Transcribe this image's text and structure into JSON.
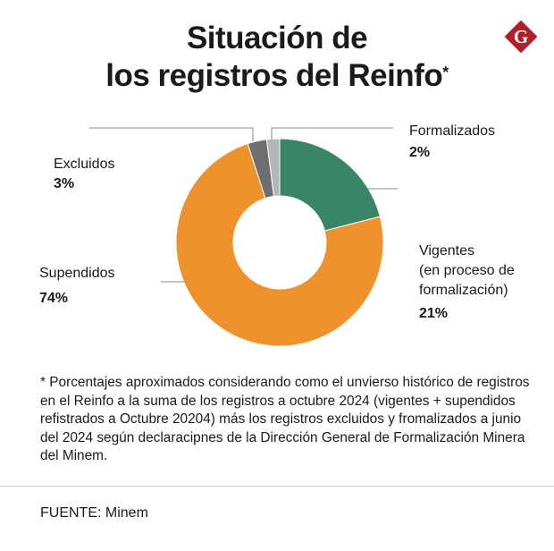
{
  "title_line1": "Situación de",
  "title_line2": "los registros del Reinfo",
  "title_mark": "*",
  "logo": {
    "letter": "G",
    "color": "#b01e2a"
  },
  "chart_data": {
    "type": "pie",
    "donut": true,
    "title": "Situación de los registros del Reinfo*",
    "slices": [
      {
        "name": "Vigentes (en proceso de formalización)",
        "label_lines": [
          "Vigentes",
          "(en proceso de",
          "formalización)"
        ],
        "value": 21,
        "display": "21%",
        "color": "#3a8565"
      },
      {
        "name": "Supendidos",
        "label_lines": [
          "Supendidos"
        ],
        "value": 74,
        "display": "74%",
        "color": "#f0922b"
      },
      {
        "name": "Excluidos",
        "label_lines": [
          "Excluidos"
        ],
        "value": 3,
        "display": "3%",
        "color": "#6d6e70"
      },
      {
        "name": "Formalizados",
        "label_lines": [
          "Formalizados"
        ],
        "value": 2,
        "display": "2%",
        "color": "#b5b6b8"
      }
    ]
  },
  "footnote": "* Porcentajes aproximados considerando como el unvierso histórico de registros en el Reinfo a la suma de los registros a octubre 2024 (vigentes + supendidos refistrados a Octubre 20204) más los registros excluidos y fromalizados a junio del 2024 según declaracipnes de la Dirección General de Formalización Minera del Minem.",
  "source": "FUENTE: Minem"
}
